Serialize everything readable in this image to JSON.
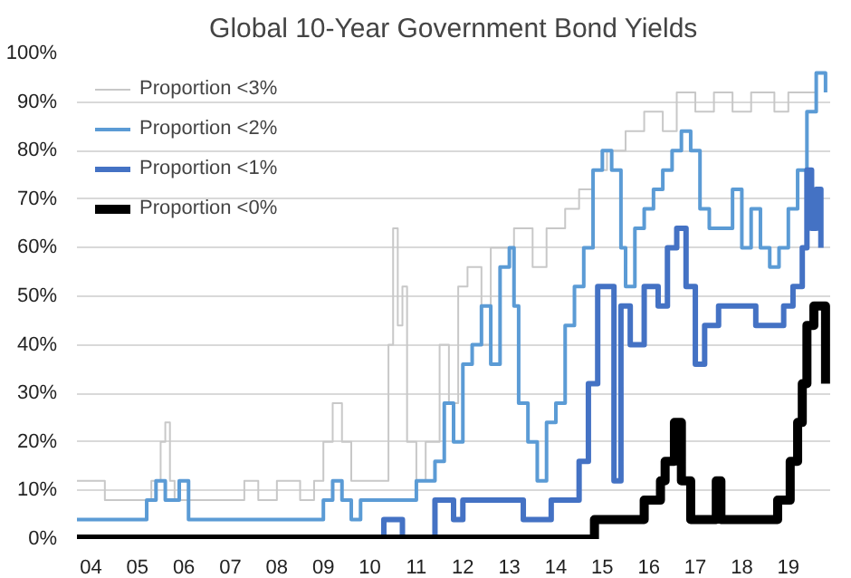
{
  "chart_data": {
    "type": "step",
    "title": "Global 10-Year Government Bond Yields",
    "xlim": [
      2003.7,
      2019.9
    ],
    "ylim": [
      0,
      100
    ],
    "xticks": [
      {
        "value": 2004,
        "label": "04"
      },
      {
        "value": 2005,
        "label": "05"
      },
      {
        "value": 2006,
        "label": "06"
      },
      {
        "value": 2007,
        "label": "07"
      },
      {
        "value": 2008,
        "label": "08"
      },
      {
        "value": 2009,
        "label": "09"
      },
      {
        "value": 2010,
        "label": "10"
      },
      {
        "value": 2011,
        "label": "11"
      },
      {
        "value": 2012,
        "label": "12"
      },
      {
        "value": 2013,
        "label": "13"
      },
      {
        "value": 2014,
        "label": "14"
      },
      {
        "value": 2015,
        "label": "15"
      },
      {
        "value": 2016,
        "label": "16"
      },
      {
        "value": 2017,
        "label": "17"
      },
      {
        "value": 2018,
        "label": "18"
      },
      {
        "value": 2019,
        "label": "19"
      }
    ],
    "yticks": [
      {
        "value": 0,
        "label": "0%"
      },
      {
        "value": 10,
        "label": "10%"
      },
      {
        "value": 20,
        "label": "20%"
      },
      {
        "value": 30,
        "label": "30%"
      },
      {
        "value": 40,
        "label": "40%"
      },
      {
        "value": 50,
        "label": "50%"
      },
      {
        "value": 60,
        "label": "60%"
      },
      {
        "value": 70,
        "label": "70%"
      },
      {
        "value": 80,
        "label": "80%"
      },
      {
        "value": 90,
        "label": "90%"
      },
      {
        "value": 100,
        "label": "100%"
      }
    ],
    "grid": "y",
    "legend": "top left",
    "series": [
      {
        "name": "Proportion <3%",
        "color": "#c8c8c8",
        "x": [
          2003.7,
          2004.3,
          2004.6,
          2005.3,
          2005.5,
          2005.6,
          2005.7,
          2005.8,
          2006.0,
          2007.0,
          2007.3,
          2007.6,
          2008.0,
          2008.5,
          2008.8,
          2009.0,
          2009.2,
          2009.4,
          2009.6,
          2010.3,
          2010.4,
          2010.5,
          2010.6,
          2010.7,
          2010.8,
          2011.0,
          2011.2,
          2011.5,
          2011.7,
          2011.9,
          2012.1,
          2012.4,
          2012.6,
          2012.9,
          2013.1,
          2013.5,
          2013.8,
          2014.2,
          2014.5,
          2014.8,
          2015.1,
          2015.5,
          2015.9,
          2016.3,
          2016.6,
          2017.0,
          2017.4,
          2017.8,
          2018.2,
          2018.7,
          2019.0,
          2019.4,
          2019.6
        ],
        "values": [
          12,
          8,
          8,
          12,
          20,
          24,
          12,
          8,
          8,
          8,
          12,
          8,
          12,
          8,
          12,
          20,
          28,
          20,
          12,
          12,
          40,
          64,
          44,
          52,
          20,
          12,
          20,
          40,
          28,
          52,
          56,
          40,
          60,
          60,
          64,
          56,
          64,
          68,
          72,
          76,
          80,
          84,
          88,
          84,
          92,
          88,
          92,
          88,
          92,
          88,
          92,
          92,
          96
        ]
      },
      {
        "name": "Proportion <2%",
        "color": "#5b9bd5",
        "x": [
          2003.7,
          2005.2,
          2005.4,
          2005.6,
          2005.9,
          2006.1,
          2008.8,
          2009.0,
          2009.2,
          2009.4,
          2009.6,
          2009.8,
          2010.5,
          2011.0,
          2011.4,
          2011.6,
          2011.8,
          2012.0,
          2012.2,
          2012.4,
          2012.6,
          2012.8,
          2013.0,
          2013.1,
          2013.2,
          2013.4,
          2013.6,
          2013.8,
          2014.0,
          2014.2,
          2014.4,
          2014.6,
          2014.8,
          2015.0,
          2015.2,
          2015.4,
          2015.5,
          2015.7,
          2015.9,
          2016.1,
          2016.3,
          2016.5,
          2016.7,
          2016.9,
          2017.1,
          2017.3,
          2017.6,
          2017.8,
          2018.0,
          2018.2,
          2018.4,
          2018.6,
          2018.8,
          2019.0,
          2019.2,
          2019.4,
          2019.6,
          2019.8
        ],
        "values": [
          4,
          8,
          12,
          8,
          12,
          4,
          4,
          8,
          12,
          8,
          4,
          8,
          8,
          12,
          16,
          28,
          20,
          36,
          40,
          48,
          36,
          56,
          60,
          48,
          28,
          20,
          12,
          24,
          28,
          44,
          52,
          60,
          76,
          80,
          76,
          60,
          52,
          64,
          68,
          72,
          76,
          80,
          84,
          80,
          68,
          64,
          64,
          72,
          60,
          68,
          60,
          56,
          60,
          68,
          76,
          88,
          96,
          92
        ]
      },
      {
        "name": "Proportion <1%",
        "color": "#4472c4",
        "x": [
          2003.7,
          2010.3,
          2010.7,
          2011.4,
          2011.8,
          2012.0,
          2012.5,
          2013.3,
          2013.9,
          2014.5,
          2014.7,
          2014.9,
          2015.25,
          2015.4,
          2015.6,
          2015.9,
          2016.2,
          2016.4,
          2016.6,
          2016.8,
          2017.0,
          2017.2,
          2017.5,
          2018.3,
          2018.9,
          2019.1,
          2019.3,
          2019.4,
          2019.5,
          2019.6,
          2019.7
        ],
        "values": [
          0,
          4,
          0,
          8,
          4,
          8,
          8,
          4,
          8,
          16,
          32,
          52,
          12,
          48,
          40,
          52,
          48,
          60,
          64,
          52,
          36,
          44,
          48,
          44,
          48,
          52,
          60,
          76,
          64,
          72,
          60
        ]
      },
      {
        "name": "Proportion <0%",
        "color": "#000000",
        "x": [
          2003.7,
          2014.83,
          2015.9,
          2016.25,
          2016.35,
          2016.55,
          2016.7,
          2016.9,
          2017.45,
          2017.55,
          2018.77,
          2019.04,
          2019.2,
          2019.3,
          2019.4,
          2019.55,
          2019.8
        ],
        "values": [
          0,
          4,
          8,
          12,
          16,
          24,
          12,
          4,
          12,
          4,
          8,
          16,
          24,
          32,
          44,
          48,
          32
        ]
      }
    ]
  }
}
